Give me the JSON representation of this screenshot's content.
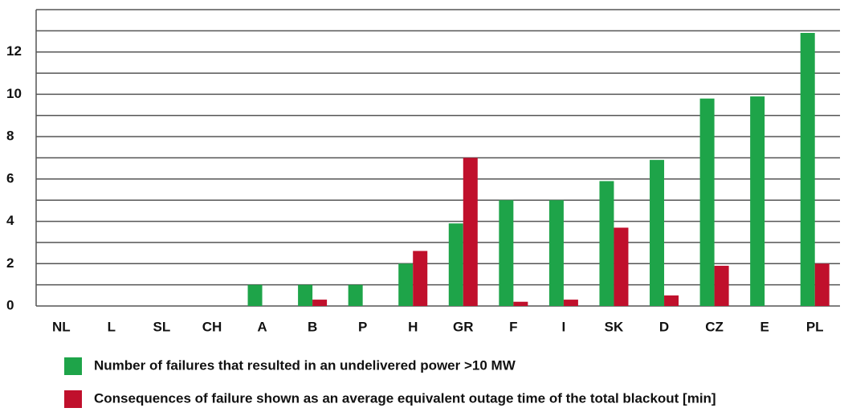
{
  "chart_data": {
    "type": "bar",
    "categories": [
      "NL",
      "L",
      "SL",
      "CH",
      "A",
      "B",
      "P",
      "H",
      "GR",
      "F",
      "I",
      "SK",
      "D",
      "CZ",
      "E",
      "PL"
    ],
    "series": [
      {
        "name": "Number of failures that resulted in an undelivered power >10 MW",
        "color": "#1ea449",
        "values": [
          0,
          0,
          0,
          0,
          1,
          1,
          1,
          2,
          3.9,
          5,
          5,
          5.9,
          6.9,
          9.8,
          9.9,
          12.9
        ]
      },
      {
        "name": "Consequences of failure shown as an average equivalent outage time of the total blackout [min]",
        "color": "#c0102c",
        "values": [
          0,
          0,
          0,
          0,
          0,
          0.3,
          0,
          2.6,
          7,
          0.2,
          0.3,
          3.7,
          0.5,
          1.9,
          0,
          2
        ]
      }
    ],
    "ylim": [
      0,
      14
    ],
    "yticks": [
      0,
      2,
      4,
      6,
      8,
      10,
      12
    ],
    "minor_yticks": [
      1,
      3,
      5,
      7,
      9,
      11,
      13,
      14
    ],
    "grid": true
  }
}
